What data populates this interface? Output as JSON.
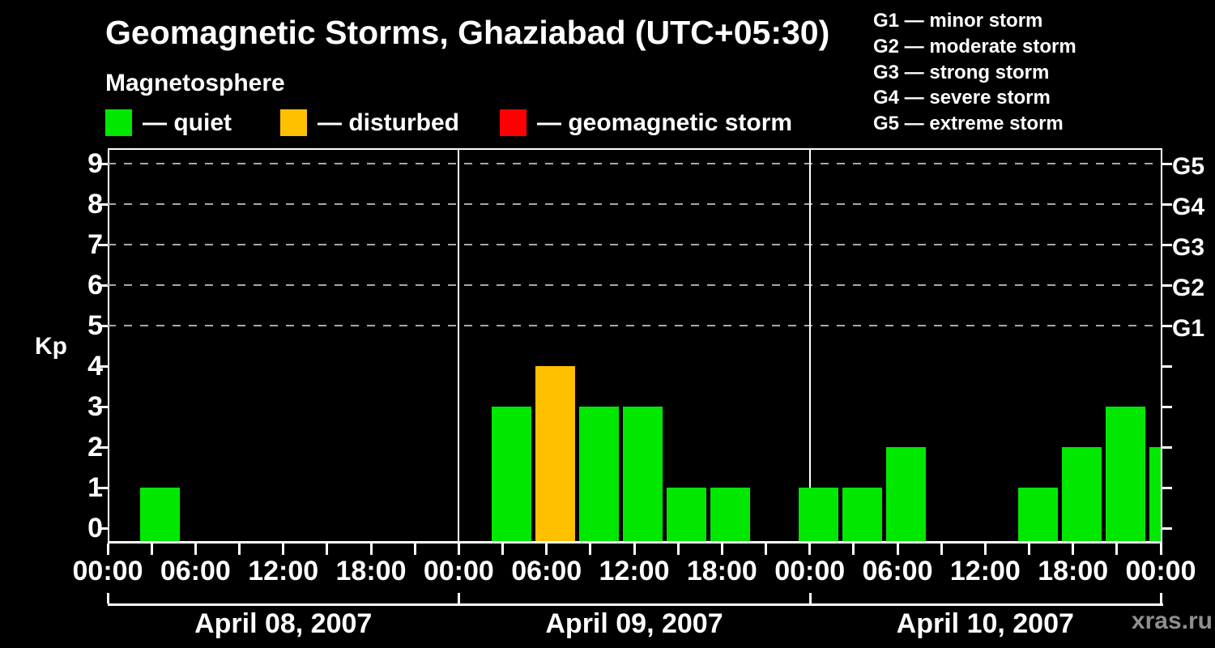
{
  "title": "Geomagnetic Storms, Ghaziabad (UTC+05:30)",
  "subtitle": "Magnetosphere",
  "watermark": "xras.ru",
  "colors": {
    "background": "#000000",
    "axis": "#ffffff",
    "grid": "#a8a8a8",
    "quiet": "#00e800",
    "disturbed": "#ffc000",
    "storm": "#ff0000",
    "watermark": "#8f8f8f"
  },
  "legend": [
    {
      "label": "— quiet",
      "color_key": "quiet"
    },
    {
      "label": "— disturbed",
      "color_key": "disturbed"
    },
    {
      "label": "— geomagnetic storm",
      "color_key": "storm"
    }
  ],
  "storm_scale_legend": [
    "G1 — minor storm",
    "G2 — moderate storm",
    "G3 — strong storm",
    "G4 — severe storm",
    "G5 — extreme storm"
  ],
  "chart_data": {
    "type": "bar",
    "ylabel": "Kp",
    "ylim": [
      0,
      9
    ],
    "yticks": [
      0,
      1,
      2,
      3,
      4,
      5,
      6,
      7,
      8,
      9
    ],
    "gridlines_kp": [
      5,
      6,
      7,
      8,
      9
    ],
    "right_axis": [
      {
        "kp": 5,
        "label": "G1"
      },
      {
        "kp": 6,
        "label": "G2"
      },
      {
        "kp": 7,
        "label": "G3"
      },
      {
        "kp": 8,
        "label": "G4"
      },
      {
        "kp": 9,
        "label": "G5"
      }
    ],
    "x_minor_tick_every_hours": 3,
    "x_major_ticks": [
      {
        "hour": 0,
        "label": "00:00"
      },
      {
        "hour": 6,
        "label": "06:00"
      },
      {
        "hour": 12,
        "label": "12:00"
      },
      {
        "hour": 18,
        "label": "18:00"
      },
      {
        "hour": 24,
        "label": "00:00"
      },
      {
        "hour": 30,
        "label": "06:00"
      },
      {
        "hour": 36,
        "label": "12:00"
      },
      {
        "hour": 42,
        "label": "18:00"
      },
      {
        "hour": 48,
        "label": "00:00"
      },
      {
        "hour": 54,
        "label": "06:00"
      },
      {
        "hour": 60,
        "label": "12:00"
      },
      {
        "hour": 66,
        "label": "18:00"
      },
      {
        "hour": 72,
        "label": "00:00"
      }
    ],
    "days": [
      {
        "label": "April 08, 2007",
        "start_hour": 0
      },
      {
        "label": "April 09, 2007",
        "start_hour": 24
      },
      {
        "label": "April 10, 2007",
        "start_hour": 48
      }
    ],
    "bars": [
      {
        "date": "April 08, 2007",
        "local_time": "00:00–02:30",
        "t0": 0,
        "t1": 2.5,
        "kp": 0,
        "status": "quiet"
      },
      {
        "date": "April 08, 2007",
        "local_time": "02:30–05:30",
        "t0": 2.5,
        "t1": 5.5,
        "kp": 1,
        "status": "quiet"
      },
      {
        "date": "April 08, 2007",
        "local_time": "05:30–08:30",
        "t0": 5.5,
        "t1": 8.5,
        "kp": 0,
        "status": "quiet"
      },
      {
        "date": "April 08, 2007",
        "local_time": "08:30–11:30",
        "t0": 8.5,
        "t1": 11.5,
        "kp": 0,
        "status": "quiet"
      },
      {
        "date": "April 08, 2007",
        "local_time": "11:30–14:30",
        "t0": 11.5,
        "t1": 14.5,
        "kp": 0,
        "status": "quiet"
      },
      {
        "date": "April 08, 2007",
        "local_time": "14:30–17:30",
        "t0": 14.5,
        "t1": 17.5,
        "kp": 0,
        "status": "quiet"
      },
      {
        "date": "April 08, 2007",
        "local_time": "17:30–20:30",
        "t0": 17.5,
        "t1": 20.5,
        "kp": 0,
        "status": "quiet"
      },
      {
        "date": "April 08, 2007",
        "local_time": "20:30–23:30",
        "t0": 20.5,
        "t1": 23.5,
        "kp": 0,
        "status": "quiet"
      },
      {
        "date": "April 08, 2007",
        "local_time": "23:30–02:30",
        "t0": 23.5,
        "t1": 26.5,
        "kp": 0,
        "status": "quiet"
      },
      {
        "date": "April 09, 2007",
        "local_time": "02:30–05:30",
        "t0": 26.5,
        "t1": 29.5,
        "kp": 3,
        "status": "quiet"
      },
      {
        "date": "April 09, 2007",
        "local_time": "05:30–08:30",
        "t0": 29.5,
        "t1": 32.5,
        "kp": 4,
        "status": "disturbed"
      },
      {
        "date": "April 09, 2007",
        "local_time": "08:30–11:30",
        "t0": 32.5,
        "t1": 35.5,
        "kp": 3,
        "status": "quiet"
      },
      {
        "date": "April 09, 2007",
        "local_time": "11:30–14:30",
        "t0": 35.5,
        "t1": 38.5,
        "kp": 3,
        "status": "quiet"
      },
      {
        "date": "April 09, 2007",
        "local_time": "14:30–17:30",
        "t0": 38.5,
        "t1": 41.5,
        "kp": 1,
        "status": "quiet"
      },
      {
        "date": "April 09, 2007",
        "local_time": "17:30–20:30",
        "t0": 41.5,
        "t1": 44.5,
        "kp": 1,
        "status": "quiet"
      },
      {
        "date": "April 09, 2007",
        "local_time": "20:30–23:30",
        "t0": 44.5,
        "t1": 47.5,
        "kp": 0,
        "status": "quiet"
      },
      {
        "date": "April 09, 2007",
        "local_time": "23:30–02:30",
        "t0": 47.5,
        "t1": 50.5,
        "kp": 1,
        "status": "quiet"
      },
      {
        "date": "April 10, 2007",
        "local_time": "02:30–05:30",
        "t0": 50.5,
        "t1": 53.5,
        "kp": 1,
        "status": "quiet"
      },
      {
        "date": "April 10, 2007",
        "local_time": "05:30–08:30",
        "t0": 53.5,
        "t1": 56.5,
        "kp": 2,
        "status": "quiet"
      },
      {
        "date": "April 10, 2007",
        "local_time": "08:30–11:30",
        "t0": 56.5,
        "t1": 59.5,
        "kp": 0,
        "status": "quiet"
      },
      {
        "date": "April 10, 2007",
        "local_time": "11:30–14:30",
        "t0": 59.5,
        "t1": 62.5,
        "kp": 0,
        "status": "quiet"
      },
      {
        "date": "April 10, 2007",
        "local_time": "14:30–17:30",
        "t0": 62.5,
        "t1": 65.5,
        "kp": 1,
        "status": "quiet"
      },
      {
        "date": "April 10, 2007",
        "local_time": "17:30–20:30",
        "t0": 65.5,
        "t1": 68.5,
        "kp": 2,
        "status": "quiet"
      },
      {
        "date": "April 10, 2007",
        "local_time": "20:30–23:30",
        "t0": 68.5,
        "t1": 71.5,
        "kp": 3,
        "status": "quiet"
      },
      {
        "date": "April 10, 2007",
        "local_time": "23:30–00:00",
        "t0": 71.5,
        "t1": 72,
        "kp": 2,
        "status": "quiet",
        "clipped": true
      }
    ]
  }
}
